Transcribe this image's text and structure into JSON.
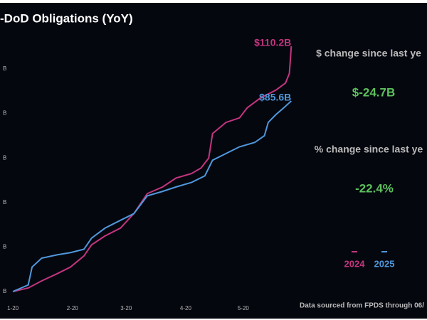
{
  "chart_data": {
    "type": "line",
    "title": "-DoD Obligations (YoY)",
    "xlim": [
      -3,
      146
    ],
    "ylim": [
      0,
      115
    ],
    "xticks": [
      {
        "value": 0,
        "label": "1-20"
      },
      {
        "value": 31,
        "label": "2-20"
      },
      {
        "value": 59,
        "label": "3-20"
      },
      {
        "value": 90,
        "label": "4-20"
      },
      {
        "value": 120,
        "label": "5-20"
      }
    ],
    "yticks": [
      {
        "value": 0,
        "label": "B"
      },
      {
        "value": 20,
        "label": "B"
      },
      {
        "value": 40,
        "label": "B"
      },
      {
        "value": 60,
        "label": "B"
      },
      {
        "value": 80,
        "label": "B"
      },
      {
        "value": 100,
        "label": "B"
      }
    ],
    "legend": "right",
    "series": [
      {
        "name": "2024",
        "color": "#c4357f",
        "x": [
          0,
          8,
          15,
          23,
          30,
          37,
          41,
          48,
          56,
          63,
          70,
          78,
          85,
          93,
          98,
          102,
          104,
          111,
          118,
          122,
          129,
          137,
          142,
          144,
          145
        ],
        "values": [
          0,
          1.6,
          4.8,
          8,
          11,
          16,
          21,
          25,
          28.5,
          35,
          44,
          47,
          51,
          53,
          55.5,
          60,
          71,
          76,
          78,
          82.5,
          87,
          90.5,
          93.7,
          98,
          110.2
        ],
        "value_labels": [
          null,
          null,
          null,
          null,
          null,
          null,
          null,
          null,
          null,
          null,
          null,
          null,
          null,
          null,
          null,
          null,
          null,
          null,
          null,
          null,
          null,
          null,
          null,
          null,
          "$110.2B"
        ]
      },
      {
        "name": "2025",
        "color": "#4f98dc",
        "x": [
          0,
          8,
          10,
          15,
          23,
          30,
          37,
          41,
          48,
          56,
          63,
          70,
          78,
          85,
          93,
          100,
          104,
          111,
          118,
          126,
          131,
          133,
          137,
          141,
          145
        ],
        "values": [
          0,
          3,
          11,
          15,
          16.5,
          17.5,
          19,
          24,
          28.5,
          32,
          35,
          43,
          45,
          47,
          49,
          52,
          59,
          62,
          65,
          67,
          70,
          76,
          79.5,
          82.5,
          85.6
        ],
        "value_labels": [
          null,
          null,
          null,
          null,
          null,
          null,
          null,
          null,
          null,
          null,
          null,
          null,
          null,
          null,
          null,
          null,
          null,
          null,
          null,
          null,
          null,
          null,
          null,
          null,
          "$85.6B"
        ]
      }
    ],
    "source": "Data sourced from FPDS through 06/"
  },
  "panel": {
    "dollar_label": "$ change since last ye",
    "dollar_value": "$-24.7B",
    "pct_label": "% change since last ye",
    "pct_value": "-22.4%",
    "value_color": "#5cc15c"
  }
}
